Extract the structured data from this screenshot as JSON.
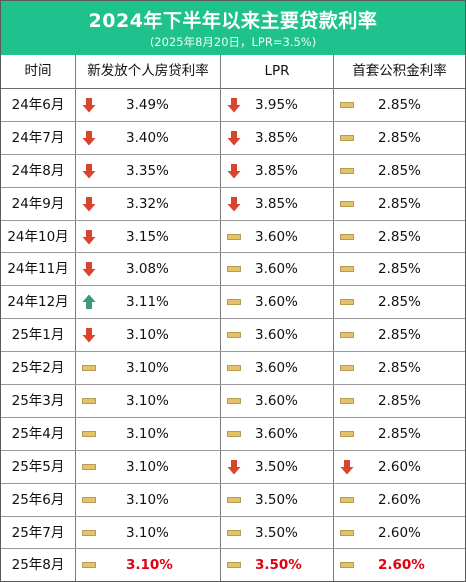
{
  "header": {
    "title": "2024年下半年以来主要贷款利率",
    "subtitle": "(2025年8月20日，LPR=3.5%)"
  },
  "columns": [
    "时间",
    "新发放个人房贷利率",
    "LPR",
    "首套公积金利率"
  ],
  "colors": {
    "header_bg": "#1fc18c",
    "down": "#d9452c",
    "up": "#3f9a78",
    "flat": "#e5c26a",
    "flat_border": "#a88a3a",
    "highlight": "#e0000f"
  },
  "chart_data": {
    "type": "table",
    "title": "2024年下半年以来主要贷款利率",
    "subtitle": "(2025年8月20日，LPR=3.5%)",
    "columns": [
      "时间",
      "新发放个人房贷利率",
      "LPR",
      "首套公积金利率"
    ],
    "rows": [
      {
        "month": "24年6月",
        "mortgage": {
          "text": "3.49%",
          "trend": "down"
        },
        "lpr": {
          "text": "3.95%",
          "trend": "down"
        },
        "fund": {
          "text": "2.85%",
          "trend": "flat"
        }
      },
      {
        "month": "24年7月",
        "mortgage": {
          "text": "3.40%",
          "trend": "down"
        },
        "lpr": {
          "text": "3.85%",
          "trend": "down"
        },
        "fund": {
          "text": "2.85%",
          "trend": "flat"
        }
      },
      {
        "month": "24年8月",
        "mortgage": {
          "text": "3.35%",
          "trend": "down"
        },
        "lpr": {
          "text": "3.85%",
          "trend": "down"
        },
        "fund": {
          "text": "2.85%",
          "trend": "flat"
        }
      },
      {
        "month": "24年9月",
        "mortgage": {
          "text": "3.32%",
          "trend": "down"
        },
        "lpr": {
          "text": "3.85%",
          "trend": "down"
        },
        "fund": {
          "text": "2.85%",
          "trend": "flat"
        }
      },
      {
        "month": "24年10月",
        "mortgage": {
          "text": "3.15%",
          "trend": "down"
        },
        "lpr": {
          "text": "3.60%",
          "trend": "flat"
        },
        "fund": {
          "text": "2.85%",
          "trend": "flat"
        }
      },
      {
        "month": "24年11月",
        "mortgage": {
          "text": "3.08%",
          "trend": "down"
        },
        "lpr": {
          "text": "3.60%",
          "trend": "flat"
        },
        "fund": {
          "text": "2.85%",
          "trend": "flat"
        }
      },
      {
        "month": "24年12月",
        "mortgage": {
          "text": "3.11%",
          "trend": "up"
        },
        "lpr": {
          "text": "3.60%",
          "trend": "flat"
        },
        "fund": {
          "text": "2.85%",
          "trend": "flat"
        }
      },
      {
        "month": "25年1月",
        "mortgage": {
          "text": "3.10%",
          "trend": "down"
        },
        "lpr": {
          "text": "3.60%",
          "trend": "flat"
        },
        "fund": {
          "text": "2.85%",
          "trend": "flat"
        }
      },
      {
        "month": "25年2月",
        "mortgage": {
          "text": "3.10%",
          "trend": "flat"
        },
        "lpr": {
          "text": "3.60%",
          "trend": "flat"
        },
        "fund": {
          "text": "2.85%",
          "trend": "flat"
        }
      },
      {
        "month": "25年3月",
        "mortgage": {
          "text": "3.10%",
          "trend": "flat"
        },
        "lpr": {
          "text": "3.60%",
          "trend": "flat"
        },
        "fund": {
          "text": "2.85%",
          "trend": "flat"
        }
      },
      {
        "month": "25年4月",
        "mortgage": {
          "text": "3.10%",
          "trend": "flat"
        },
        "lpr": {
          "text": "3.60%",
          "trend": "flat"
        },
        "fund": {
          "text": "2.85%",
          "trend": "flat"
        }
      },
      {
        "month": "25年5月",
        "mortgage": {
          "text": "3.10%",
          "trend": "flat"
        },
        "lpr": {
          "text": "3.50%",
          "trend": "down"
        },
        "fund": {
          "text": "2.60%",
          "trend": "down"
        }
      },
      {
        "month": "25年6月",
        "mortgage": {
          "text": "3.10%",
          "trend": "flat"
        },
        "lpr": {
          "text": "3.50%",
          "trend": "flat"
        },
        "fund": {
          "text": "2.60%",
          "trend": "flat"
        }
      },
      {
        "month": "25年7月",
        "mortgage": {
          "text": "3.10%",
          "trend": "flat"
        },
        "lpr": {
          "text": "3.50%",
          "trend": "flat"
        },
        "fund": {
          "text": "2.60%",
          "trend": "flat"
        }
      },
      {
        "month": "25年8月",
        "mortgage": {
          "text": "3.10%",
          "trend": "flat",
          "highlight": true
        },
        "lpr": {
          "text": "3.50%",
          "trend": "flat",
          "highlight": true
        },
        "fund": {
          "text": "2.60%",
          "trend": "flat",
          "highlight": true
        }
      }
    ]
  }
}
